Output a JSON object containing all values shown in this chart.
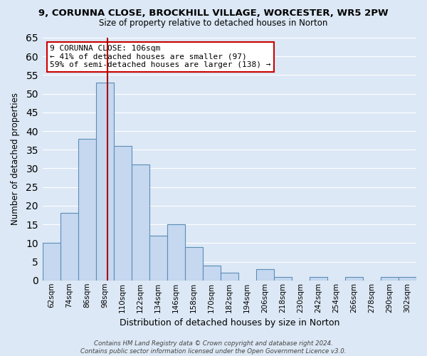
{
  "title": "9, CORUNNA CLOSE, BROCKHILL VILLAGE, WORCESTER, WR5 2PW",
  "subtitle": "Size of property relative to detached houses in Norton",
  "xlabel": "Distribution of detached houses by size in Norton",
  "ylabel": "Number of detached properties",
  "bar_labels": [
    "62sqm",
    "74sqm",
    "86sqm",
    "98sqm",
    "110sqm",
    "122sqm",
    "134sqm",
    "146sqm",
    "158sqm",
    "170sqm",
    "182sqm",
    "194sqm",
    "206sqm",
    "218sqm",
    "230sqm",
    "242sqm",
    "254sqm",
    "266sqm",
    "278sqm",
    "290sqm",
    "302sqm"
  ],
  "bar_values": [
    10,
    18,
    38,
    53,
    36,
    31,
    12,
    15,
    9,
    4,
    2,
    0,
    3,
    1,
    0,
    1,
    0,
    1,
    0,
    1,
    1
  ],
  "bar_fill_color": "#c5d8f0",
  "bar_edge_color": "#5b8db8",
  "grid_color": "#ffffff",
  "bg_color": "#dce8f5",
  "ylim": [
    0,
    65
  ],
  "yticks": [
    0,
    5,
    10,
    15,
    20,
    25,
    30,
    35,
    40,
    45,
    50,
    55,
    60,
    65
  ],
  "ref_line_color": "#aa0000",
  "annotation_text": "9 CORUNNA CLOSE: 106sqm\n← 41% of detached houses are smaller (97)\n59% of semi-detached houses are larger (138) →",
  "annotation_box_color": "#ffffff",
  "annotation_box_edge": "#cc0000",
  "footer": "Contains HM Land Registry data © Crown copyright and database right 2024.\nContains public sector information licensed under the Open Government Licence v3.0."
}
